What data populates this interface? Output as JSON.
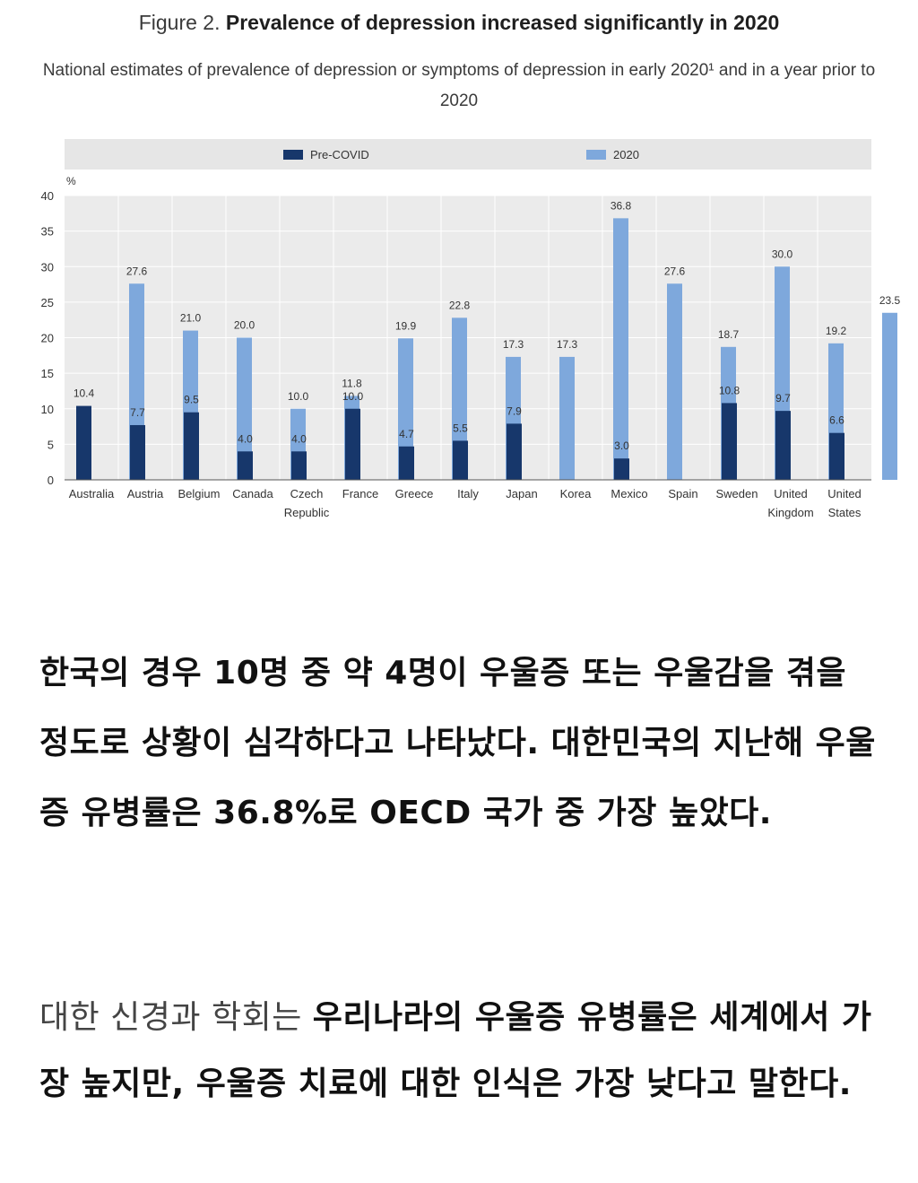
{
  "figure": {
    "label": "Figure 2.",
    "title": "Prevalence of depression increased significantly in 2020",
    "subtitle": "National estimates of prevalence of depression or symptoms of depression in early 2020¹ and in a year prior to 2020"
  },
  "chart_data": {
    "type": "bar",
    "ylabel": "%",
    "ylim": [
      0,
      40
    ],
    "yticks": [
      0,
      5,
      10,
      15,
      20,
      25,
      30,
      35,
      40
    ],
    "grid": true,
    "legend_position": "top",
    "categories": [
      "Australia",
      "Austria",
      "Belgium",
      "Canada",
      "Czech Republic",
      "France",
      "Greece",
      "Italy",
      "Japan",
      "Korea",
      "Mexico",
      "Spain",
      "Sweden",
      "United Kingdom",
      "United States"
    ],
    "series": [
      {
        "name": "Pre-COVID",
        "color": "#17376b",
        "values": [
          10.4,
          7.7,
          9.5,
          4.0,
          4.0,
          10.0,
          4.7,
          5.5,
          7.9,
          null,
          3.0,
          null,
          10.8,
          9.7,
          6.6
        ],
        "labels": [
          "10.4",
          "7.7",
          "9.5",
          "4.0",
          "4.0",
          "10.0",
          "4.7",
          "5.5",
          "7.9",
          "",
          "3.0",
          "",
          "10.8",
          "9.7",
          "6.6"
        ]
      },
      {
        "name": "2020",
        "color": "#7ea8dc",
        "values": [
          27.6,
          21.0,
          20.0,
          10.0,
          11.8,
          19.9,
          22.8,
          17.3,
          17.3,
          36.8,
          27.6,
          18.7,
          30.0,
          19.2,
          23.5
        ],
        "labels": [
          "27.6",
          "21.0",
          "20.0",
          "10.0",
          "11.8",
          "19.9",
          "22.8",
          "17.3",
          "17.3",
          "36.8",
          "27.6",
          "18.7",
          "30.0",
          "19.2",
          "23.5"
        ]
      }
    ]
  },
  "article": {
    "para1": "한국의 경우 10명 중 약 4명이 우울증 또는 우울감을 겪을 정도로 상황이 심각하다고 나타났다. 대한민국의 지난해 우울증 유병률은 36.8%로 OECD 국가 중 가장 높았다.",
    "para2_prefix": "대한 신경과 학회는 ",
    "para2_emphasis": "우리나라의 우울증 유병률은 세계에서 가장 높지만, 우울증 치료에 대한 인식은 가장 낮다고 말한다."
  }
}
